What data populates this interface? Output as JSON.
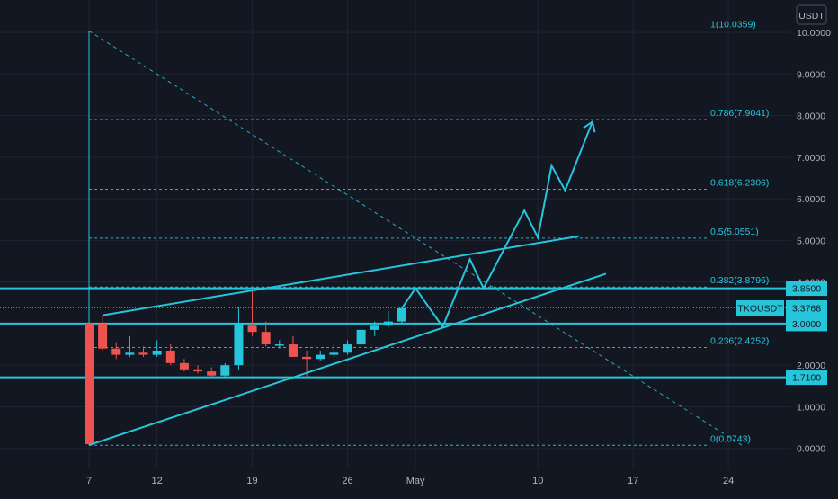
{
  "pair_badge": "TKOUSDT",
  "currency_label": "USDT",
  "colors": {
    "background": "#131722",
    "grid": "#1f2430",
    "axis_text": "#b2b5be",
    "up": "#26c6da",
    "down": "#ef5350",
    "line": "#26c6da",
    "badge_bg": "#26c6da",
    "badge_text": "#131722"
  },
  "chart_data": {
    "type": "candlestick",
    "title": "",
    "y_axis": {
      "min": 0,
      "max": 10.5,
      "ticks": [
        "0.0000",
        "1.0000",
        "2.0000",
        "3.0000",
        "4.0000",
        "5.0000",
        "6.0000",
        "7.0000",
        "8.0000",
        "9.0000",
        "10.0000"
      ],
      "position": "right"
    },
    "x_axis": {
      "ticks": [
        {
          "day": 7,
          "label": "7"
        },
        {
          "day": 12,
          "label": "12"
        },
        {
          "day": 19,
          "label": "19"
        },
        {
          "day": 26,
          "label": "26"
        },
        {
          "day": 31,
          "label": "May"
        },
        {
          "day": 40,
          "label": "10"
        },
        {
          "day": 47,
          "label": "17"
        },
        {
          "day": 54,
          "label": "24"
        }
      ]
    },
    "grid": true,
    "candles": [
      {
        "day": 7,
        "open": 3.0,
        "high": 3.02,
        "low": 0.08,
        "close": 0.1
      },
      {
        "day": 8,
        "open": 3.0,
        "high": 3.2,
        "low": 2.35,
        "close": 2.4
      },
      {
        "day": 9,
        "open": 2.4,
        "high": 2.55,
        "low": 2.15,
        "close": 2.25
      },
      {
        "day": 10,
        "open": 2.25,
        "high": 2.7,
        "low": 2.2,
        "close": 2.3
      },
      {
        "day": 11,
        "open": 2.3,
        "high": 2.45,
        "low": 2.2,
        "close": 2.25
      },
      {
        "day": 12,
        "open": 2.25,
        "high": 2.6,
        "low": 2.2,
        "close": 2.35
      },
      {
        "day": 13,
        "open": 2.35,
        "high": 2.5,
        "low": 2.0,
        "close": 2.05
      },
      {
        "day": 14,
        "open": 2.05,
        "high": 2.15,
        "low": 1.85,
        "close": 1.9
      },
      {
        "day": 15,
        "open": 1.9,
        "high": 2.0,
        "low": 1.8,
        "close": 1.85
      },
      {
        "day": 16,
        "open": 1.85,
        "high": 1.95,
        "low": 1.7,
        "close": 1.75
      },
      {
        "day": 17,
        "open": 1.75,
        "high": 2.05,
        "low": 1.7,
        "close": 2.0
      },
      {
        "day": 18,
        "open": 2.0,
        "high": 3.4,
        "low": 1.9,
        "close": 3.0
      },
      {
        "day": 19,
        "open": 2.95,
        "high": 3.8,
        "low": 2.7,
        "close": 2.8
      },
      {
        "day": 20,
        "open": 2.8,
        "high": 3.05,
        "low": 2.45,
        "close": 2.5
      },
      {
        "day": 21,
        "open": 2.5,
        "high": 2.6,
        "low": 2.4,
        "close": 2.5
      },
      {
        "day": 22,
        "open": 2.5,
        "high": 2.7,
        "low": 2.2,
        "close": 2.2
      },
      {
        "day": 23,
        "open": 2.2,
        "high": 2.35,
        "low": 1.7,
        "close": 2.15
      },
      {
        "day": 24,
        "open": 2.15,
        "high": 2.35,
        "low": 2.1,
        "close": 2.25
      },
      {
        "day": 25,
        "open": 2.25,
        "high": 2.5,
        "low": 2.2,
        "close": 2.3
      },
      {
        "day": 26,
        "open": 2.3,
        "high": 2.6,
        "low": 2.25,
        "close": 2.5
      },
      {
        "day": 27,
        "open": 2.5,
        "high": 2.85,
        "low": 2.45,
        "close": 2.85
      },
      {
        "day": 28,
        "open": 2.85,
        "high": 3.05,
        "low": 2.7,
        "close": 2.95
      },
      {
        "day": 29,
        "open": 2.95,
        "high": 3.3,
        "low": 2.9,
        "close": 3.05
      },
      {
        "day": 30,
        "open": 3.05,
        "high": 3.4,
        "low": 3.0,
        "close": 3.37
      }
    ],
    "fib_levels": [
      {
        "label": "0(0.0743)",
        "value": 0.0743
      },
      {
        "label": "0.236(2.4252)",
        "value": 2.4252
      },
      {
        "label": "0.382(3.8796)",
        "value": 3.8796
      },
      {
        "label": "0.5(5.0551)",
        "value": 5.0551
      },
      {
        "label": "0.618(6.2306)",
        "value": 6.2306
      },
      {
        "label": "0.786(7.9041)",
        "value": 7.9041
      },
      {
        "label": "1(10.0359)",
        "value": 10.0359
      }
    ],
    "horizontal_levels": [
      {
        "label": "3.8500",
        "value": 3.85
      },
      {
        "label": "3.0000",
        "value": 3.0
      },
      {
        "label": "1.7100",
        "value": 1.71
      }
    ],
    "current_price": {
      "label": "3.3768",
      "value": 3.3768
    },
    "channel_lines": [
      {
        "points": [
          {
            "day": 8,
            "price": 3.2
          },
          {
            "day": 43,
            "price": 5.1
          }
        ]
      },
      {
        "points": [
          {
            "day": 7,
            "price": 0.08
          },
          {
            "day": 45,
            "price": 4.2
          }
        ]
      }
    ],
    "diagonal_line": {
      "points": [
        {
          "day": 7,
          "price": 10.0359
        },
        {
          "day": 55,
          "price": 0.0743
        }
      ]
    },
    "projection_path": [
      {
        "day": 30,
        "price": 3.37
      },
      {
        "day": 31,
        "price": 3.85
      },
      {
        "day": 33,
        "price": 2.92
      },
      {
        "day": 35,
        "price": 4.55
      },
      {
        "day": 36,
        "price": 3.85
      },
      {
        "day": 39,
        "price": 5.72
      },
      {
        "day": 40,
        "price": 5.07
      },
      {
        "day": 41,
        "price": 6.8
      },
      {
        "day": 42,
        "price": 6.2
      },
      {
        "day": 44,
        "price": 7.85
      }
    ]
  }
}
